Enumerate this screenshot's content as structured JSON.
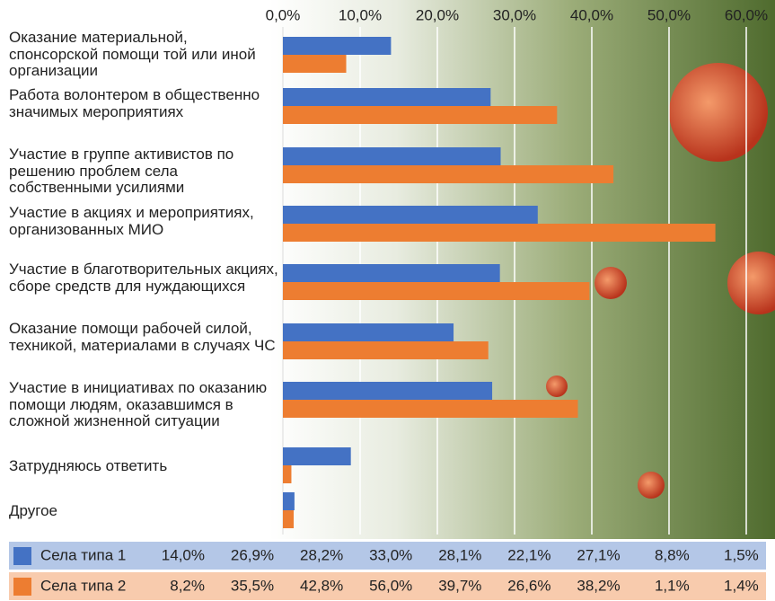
{
  "chart_data": {
    "type": "bar",
    "orientation": "horizontal",
    "categories": [
      "Оказание материальной, спонсорской помощи той или иной организации",
      "Работа волонтером в общественно значимых мероприятиях",
      "Участие в группе активистов по решению проблем села собственными усилиями",
      "Участие в акциях и мероприятиях, организованных МИО",
      "Участие в благотворительных акциях, сборе средств для нуждающихся",
      "Оказание помощи рабочей силой, техникой, материалами в случаях ЧС",
      "Участие в инициативах по оказанию помощи людям, оказавшимся в сложной жизненной ситуации",
      "Затрудняюсь ответить",
      "Другое"
    ],
    "series": [
      {
        "name": "Села типа 1",
        "color": "#4472c4",
        "values": [
          14.0,
          26.9,
          28.2,
          33.0,
          28.1,
          22.1,
          27.1,
          8.8,
          1.5
        ],
        "value_labels": [
          "14,0%",
          "26,9%",
          "28,2%",
          "33,0%",
          "28,1%",
          "22,1%",
          "27,1%",
          "8,8%",
          "1,5%"
        ]
      },
      {
        "name": "Села типа 2",
        "color": "#ed7d31",
        "values": [
          8.2,
          35.5,
          42.8,
          56.0,
          39.7,
          26.6,
          38.2,
          1.1,
          1.4
        ],
        "value_labels": [
          "8,2%",
          "35,5%",
          "42,8%",
          "56,0%",
          "39,7%",
          "26,6%",
          "38,2%",
          "1,1%",
          "1,4%"
        ]
      }
    ],
    "xlim": [
      0,
      60
    ],
    "xticks": [
      {
        "value": 0,
        "label": "0,0%"
      },
      {
        "value": 10,
        "label": "10,0%"
      },
      {
        "value": 20,
        "label": "20,0%"
      },
      {
        "value": 30,
        "label": "30,0%"
      },
      {
        "value": 40,
        "label": "40,0%"
      },
      {
        "value": 50,
        "label": "50,0%"
      },
      {
        "value": 60,
        "label": "60,0%"
      }
    ],
    "grid": true
  }
}
